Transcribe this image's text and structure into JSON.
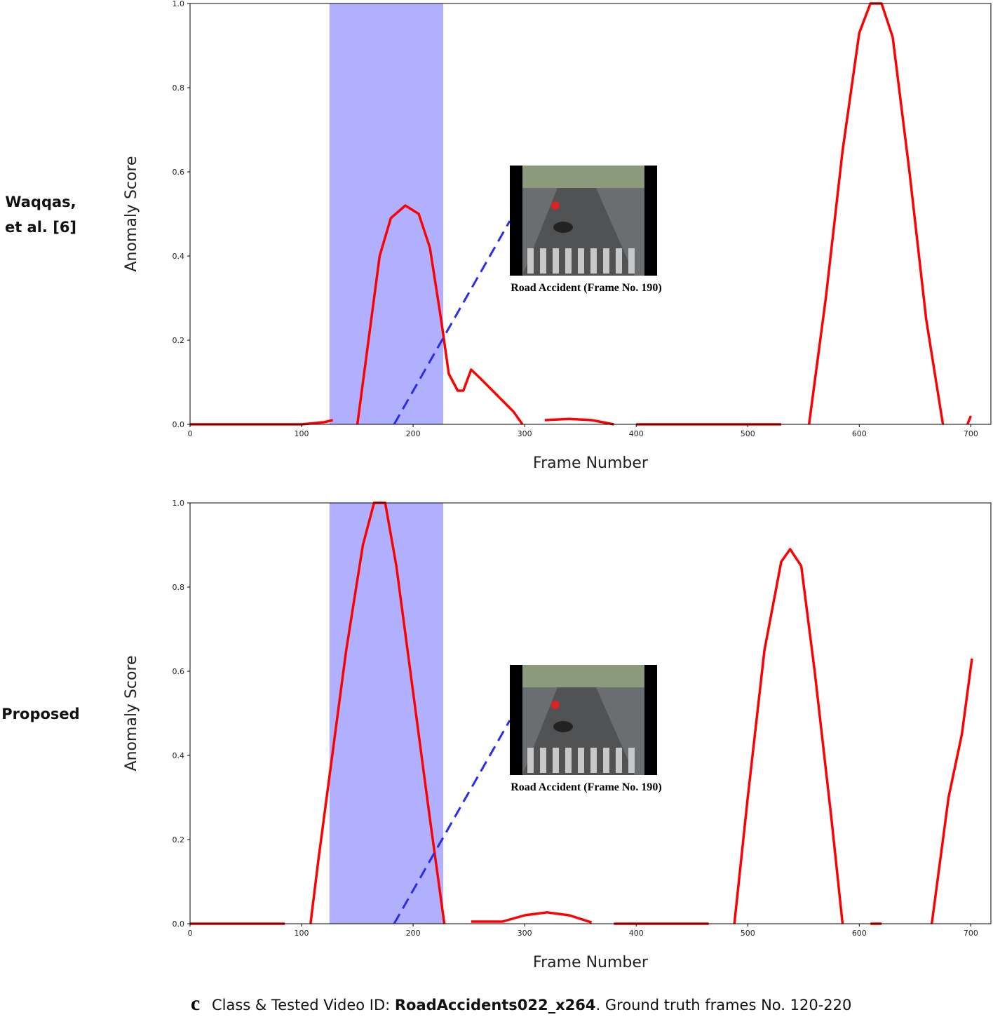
{
  "chart_data": [
    {
      "type": "line",
      "row_label": [
        "Waqqas,",
        "et al. [6]"
      ],
      "ylabel": "Anomaly Score",
      "xlabel": "Frame Number",
      "xlim": [
        0,
        718
      ],
      "ylim": [
        0,
        1
      ],
      "xticks": [
        0,
        100,
        200,
        300,
        400,
        500,
        600,
        700
      ],
      "yticks": [
        {
          "value": 0,
          "label": "0.0"
        },
        0.2,
        0.4,
        0.6,
        0.8,
        {
          "value": 1,
          "label": "1.0"
        }
      ],
      "color": "#ff0000",
      "shaded_span": [
        125,
        227
      ],
      "shaded_color": "#b0b0ff",
      "inset_caption": "Road Accident (Frame No. 190)",
      "x": [
        0,
        50,
        90,
        100,
        120,
        128,
        null,
        150,
        160,
        170,
        180,
        193,
        205,
        215,
        225,
        232,
        240,
        245,
        252,
        260,
        275,
        290,
        298,
        null,
        318,
        340,
        360,
        380,
        null,
        400,
        530,
        null,
        555,
        570,
        585,
        600,
        610,
        620,
        630,
        645,
        660,
        675,
        null,
        697,
        700
      ],
      "values": [
        0,
        0,
        0,
        0,
        0.005,
        0.01,
        null,
        0,
        0.2,
        0.4,
        0.49,
        0.52,
        0.5,
        0.42,
        0.25,
        0.12,
        0.08,
        0.08,
        0.13,
        0.11,
        0.07,
        0.03,
        0,
        null,
        0.01,
        0.013,
        0.01,
        0,
        null,
        0,
        0,
        null,
        0,
        0.3,
        0.65,
        0.93,
        1.0,
        1.0,
        0.92,
        0.6,
        0.25,
        0,
        null,
        0,
        0.02
      ]
    },
    {
      "type": "line",
      "row_label": [
        "Proposed"
      ],
      "ylabel": "Anomaly Score",
      "xlabel": "Frame Number",
      "xlim": [
        0,
        718
      ],
      "ylim": [
        0,
        1
      ],
      "xticks": [
        0,
        100,
        200,
        300,
        400,
        500,
        600,
        700
      ],
      "yticks": [
        {
          "value": 0,
          "label": "0.0"
        },
        0.2,
        0.4,
        0.6,
        0.8,
        {
          "value": 1,
          "label": "1.0"
        }
      ],
      "color": "#ff0000",
      "shaded_span": [
        125,
        227
      ],
      "shaded_color": "#b0b0ff",
      "inset_caption": "Road Accident (Frame No. 190)",
      "x": [
        0,
        50,
        85,
        null,
        108,
        115,
        125,
        140,
        155,
        165,
        175,
        185,
        200,
        215,
        228,
        null,
        252,
        280,
        300,
        320,
        340,
        360,
        null,
        380,
        465,
        null,
        488,
        500,
        515,
        530,
        538,
        548,
        560,
        575,
        585,
        null,
        610,
        620,
        null,
        665,
        680,
        692,
        701
      ],
      "values": [
        0,
        0,
        0,
        null,
        0,
        0.15,
        0.35,
        0.65,
        0.9,
        1.0,
        1.0,
        0.85,
        0.55,
        0.25,
        0,
        null,
        0.005,
        0.005,
        0.02,
        0.027,
        0.02,
        0.003,
        null,
        0,
        0,
        null,
        0,
        0.3,
        0.65,
        0.86,
        0.89,
        0.85,
        0.6,
        0.25,
        0,
        null,
        0,
        0,
        null,
        0,
        0.3,
        0.45,
        0.63
      ]
    }
  ],
  "footer": {
    "letter": "c",
    "prefix": "Class & Tested Video ID: ",
    "video_id": "RoadAccidents022_x264",
    "suffix": ". Ground truth frames No. 120-220"
  }
}
